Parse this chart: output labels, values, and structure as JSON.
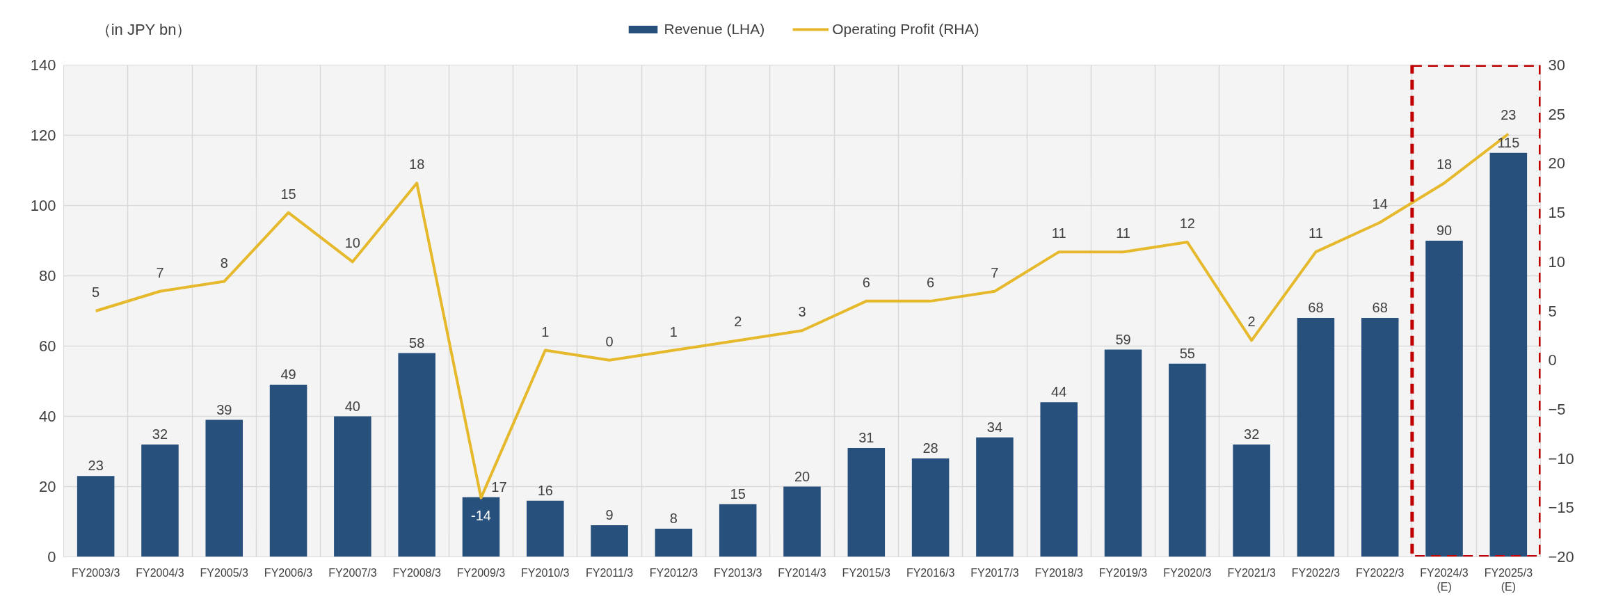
{
  "chart_data": {
    "type": "bar",
    "ylabel": "（in JPY bn）",
    "categories": [
      "FY2003/3",
      "FY2004/3",
      "FY2005/3",
      "FY2006/3",
      "FY2007/3",
      "FY2008/3",
      "FY2009/3",
      "FY2010/3",
      "FY2011/3",
      "FY2012/3",
      "FY2013/3",
      "FY2014/3",
      "FY2015/3",
      "FY2016/3",
      "FY2017/3",
      "FY2018/3",
      "FY2019/3",
      "FY2020/3",
      "FY2021/3",
      "FY2022/3",
      "FY2022/3",
      "FY2024/3\n(E)",
      "FY2025/3\n(E)"
    ],
    "series": [
      {
        "name": "Revenue (LHA)",
        "color": "#27507c",
        "values": [
          23,
          32,
          39,
          49,
          40,
          58,
          17,
          16,
          9,
          8,
          15,
          20,
          31,
          28,
          34,
          44,
          59,
          55,
          32,
          68,
          68,
          90,
          115
        ]
      },
      {
        "name": "Operating Profit (RHA)",
        "type": "line",
        "axis": "y2",
        "color": "#e5b92b",
        "values": [
          5,
          7,
          8,
          15,
          10,
          18,
          -14,
          1,
          0,
          1,
          2,
          3,
          6,
          6,
          7,
          11,
          11,
          12,
          2,
          11,
          14,
          18,
          23
        ]
      }
    ],
    "ylim": [
      0,
      140
    ],
    "yticks": [
      0,
      20,
      40,
      60,
      80,
      100,
      120,
      140
    ],
    "y2lim": [
      -20,
      30
    ],
    "y2ticks": [
      -20,
      -15,
      -10,
      -5,
      0,
      5,
      10,
      15,
      20,
      25,
      30
    ],
    "grid": true,
    "legend": "top",
    "data_labels": true
  }
}
